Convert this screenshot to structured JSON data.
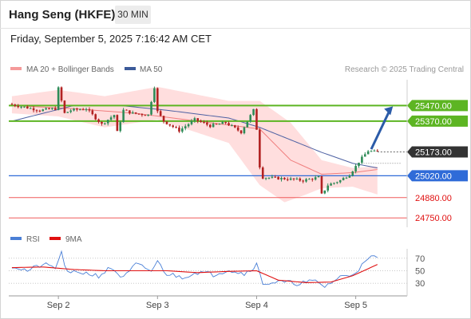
{
  "header": {
    "title": "Hang Seng (HKFE)",
    "timeframe": "30 MIN"
  },
  "datetime": "Friday, September 5, 2025 7:16:42 AM CET",
  "colors": {
    "bollinger_band": "#ffd6d6",
    "ma20": "#f07f7f",
    "ma50": "#4d61a3",
    "candle_up": "#2e8b57",
    "candle_down": "#b22222",
    "resistance": "#5db523",
    "pivot": "#2f6bd8",
    "support": "#f05a5a",
    "last_price": "#333333",
    "arrow": "#2b5ba8",
    "rsi": "#4a7fd6",
    "rsi_ma": "#e01010"
  },
  "chart_data": [
    {
      "type": "candlestick",
      "legend": [
        {
          "name": "MA 20 + Bollinger Bands",
          "color": "#f59a9a"
        },
        {
          "name": "MA 50",
          "color": "#3c5a99"
        }
      ],
      "credit": "Research © 2025 Trading Central",
      "ylim": [
        24700,
        25620
      ],
      "x_ticks": [
        {
          "label": "Sep 2",
          "bar": 15
        },
        {
          "label": "Sep 3",
          "bar": 47
        },
        {
          "label": "Sep 4",
          "bar": 79
        },
        {
          "label": "Sep 5",
          "bar": 111
        }
      ],
      "levels": [
        {
          "label": "25470.00",
          "value": 25470,
          "kind": "resistance"
        },
        {
          "label": "25370.00",
          "value": 25370,
          "kind": "resistance"
        },
        {
          "label": "25173.00",
          "value": 25173,
          "kind": "last"
        },
        {
          "label": "25020.00",
          "value": 25020,
          "kind": "pivot"
        },
        {
          "label": "24880.00",
          "value": 24880,
          "kind": "support"
        },
        {
          "label": "24750.00",
          "value": 24750,
          "kind": "support"
        }
      ],
      "forecast": {
        "from_bar": 116,
        "from_value": 25190,
        "to_bar": 123,
        "to_value": 25465
      },
      "ohlc_anchors": [
        [
          0,
          25480
        ],
        [
          5,
          25460
        ],
        [
          10,
          25440
        ],
        [
          15,
          25450
        ],
        [
          16,
          25580
        ],
        [
          18,
          25420
        ],
        [
          20,
          25440
        ],
        [
          25,
          25450
        ],
        [
          30,
          25350
        ],
        [
          34,
          25410
        ],
        [
          35,
          25300
        ],
        [
          37,
          25440
        ],
        [
          40,
          25420
        ],
        [
          45,
          25410
        ],
        [
          47,
          25590
        ],
        [
          48,
          25430
        ],
        [
          50,
          25370
        ],
        [
          55,
          25310
        ],
        [
          60,
          25380
        ],
        [
          65,
          25340
        ],
        [
          70,
          25360
        ],
        [
          75,
          25300
        ],
        [
          79,
          25440
        ],
        [
          80,
          25320
        ],
        [
          81,
          25080
        ],
        [
          82,
          25010
        ],
        [
          90,
          25000
        ],
        [
          95,
          24990
        ],
        [
          100,
          25010
        ],
        [
          101,
          24900
        ],
        [
          103,
          24960
        ],
        [
          107,
          24990
        ],
        [
          110,
          25030
        ],
        [
          112,
          25080
        ],
        [
          113,
          25110
        ],
        [
          116,
          25180
        ],
        [
          118,
          25173
        ]
      ],
      "ma50_anchors": [
        [
          0,
          25370
        ],
        [
          10,
          25420
        ],
        [
          20,
          25470
        ],
        [
          35,
          25470
        ],
        [
          50,
          25440
        ],
        [
          70,
          25390
        ],
        [
          80,
          25330
        ],
        [
          90,
          25250
        ],
        [
          100,
          25170
        ],
        [
          110,
          25100
        ],
        [
          118,
          25070
        ]
      ],
      "ma20_anchors": [
        [
          0,
          25470
        ],
        [
          20,
          25450
        ],
        [
          40,
          25420
        ],
        [
          60,
          25370
        ],
        [
          80,
          25320
        ],
        [
          90,
          25120
        ],
        [
          100,
          25030
        ],
        [
          110,
          25040
        ],
        [
          118,
          25060
        ]
      ],
      "bb_upper_anchors": [
        [
          0,
          25530
        ],
        [
          15,
          25570
        ],
        [
          30,
          25530
        ],
        [
          47,
          25590
        ],
        [
          70,
          25500
        ],
        [
          80,
          25500
        ],
        [
          90,
          25360
        ],
        [
          95,
          25240
        ],
        [
          100,
          25120
        ],
        [
          110,
          25070
        ],
        [
          118,
          25080
        ]
      ],
      "bb_lower_anchors": [
        [
          0,
          25420
        ],
        [
          15,
          25400
        ],
        [
          30,
          25330
        ],
        [
          47,
          25380
        ],
        [
          70,
          25230
        ],
        [
          80,
          24960
        ],
        [
          88,
          24850
        ],
        [
          95,
          24900
        ],
        [
          100,
          24940
        ],
        [
          110,
          24950
        ],
        [
          118,
          24900
        ]
      ],
      "rsi": {
        "legend": [
          {
            "name": "RSI",
            "color": "#4a7fd6"
          },
          {
            "name": "9MA",
            "color": "#e01010"
          }
        ],
        "ylim": [
          15,
          85
        ],
        "ticks": [
          70,
          50,
          30
        ],
        "rsi_anchors": [
          [
            0,
            58
          ],
          [
            5,
            50
          ],
          [
            10,
            60
          ],
          [
            14,
            55
          ],
          [
            16,
            78
          ],
          [
            18,
            45
          ],
          [
            22,
            48
          ],
          [
            28,
            42
          ],
          [
            32,
            55
          ],
          [
            36,
            38
          ],
          [
            40,
            60
          ],
          [
            45,
            50
          ],
          [
            47,
            64
          ],
          [
            50,
            45
          ],
          [
            55,
            40
          ],
          [
            60,
            48
          ],
          [
            65,
            44
          ],
          [
            70,
            52
          ],
          [
            75,
            45
          ],
          [
            79,
            60
          ],
          [
            81,
            30
          ],
          [
            86,
            32
          ],
          [
            92,
            30
          ],
          [
            98,
            33
          ],
          [
            101,
            25
          ],
          [
            106,
            40
          ],
          [
            110,
            45
          ],
          [
            113,
            58
          ],
          [
            116,
            72
          ],
          [
            118,
            70
          ]
        ],
        "ma_anchors": [
          [
            0,
            55
          ],
          [
            10,
            56
          ],
          [
            20,
            52
          ],
          [
            30,
            50
          ],
          [
            40,
            50
          ],
          [
            50,
            50
          ],
          [
            60,
            47
          ],
          [
            70,
            49
          ],
          [
            79,
            50
          ],
          [
            86,
            35
          ],
          [
            95,
            31
          ],
          [
            103,
            32
          ],
          [
            110,
            42
          ],
          [
            118,
            60
          ]
        ]
      }
    }
  ]
}
